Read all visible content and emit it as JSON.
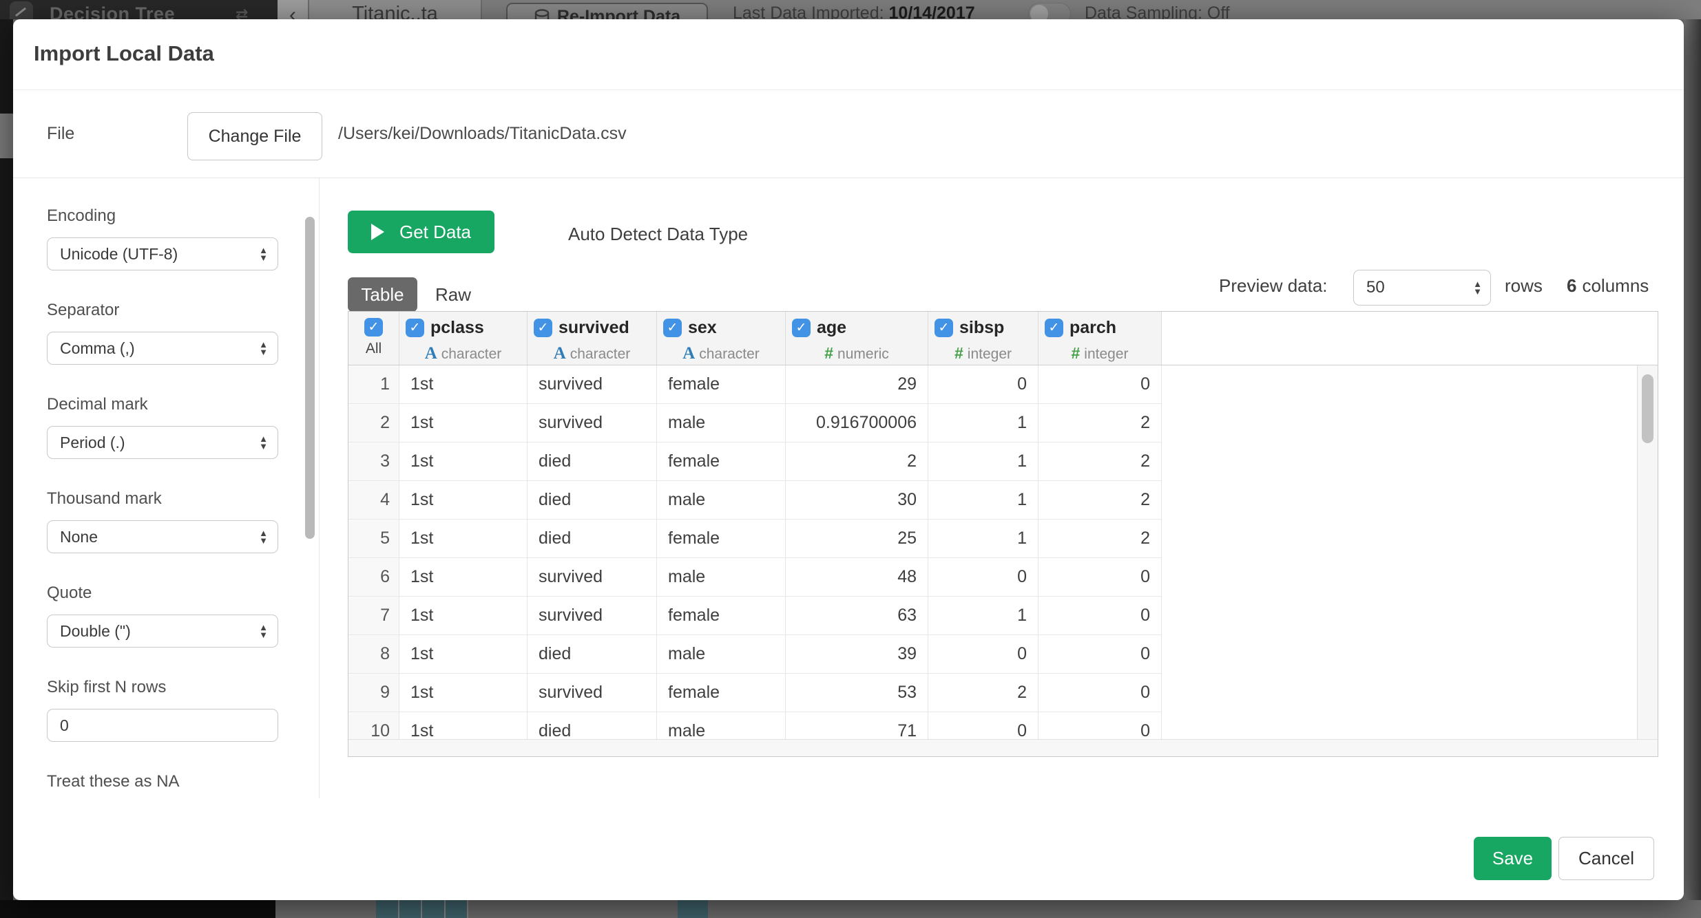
{
  "topbar": {
    "app_title": "Decision Tree",
    "tab_label": "Titanic..ta",
    "reimport_button": "Re-Import Data",
    "last_import_label": "Last Data Imported:",
    "last_import_date": "10/14/2017",
    "data_sampling_label": "Data Sampling: Off"
  },
  "modal": {
    "title": "Import Local Data",
    "file_section": {
      "label": "File",
      "change_button": "Change File",
      "path": "/Users/kei/Downloads/TitanicData.csv"
    },
    "sidebar_fields": [
      {
        "label": "Encoding",
        "control": "select",
        "value": "Unicode (UTF-8)"
      },
      {
        "label": "Separator",
        "control": "select",
        "value": "Comma (,)"
      },
      {
        "label": "Decimal mark",
        "control": "select",
        "value": "Period (.)"
      },
      {
        "label": "Thousand mark",
        "control": "select",
        "value": "None"
      },
      {
        "label": "Quote",
        "control": "select",
        "value": "Double (\")"
      },
      {
        "label": "Skip first N rows",
        "control": "input",
        "value": "0"
      },
      {
        "label": "Treat these as NA",
        "control": "none",
        "value": ""
      }
    ],
    "toolbar": {
      "get_data_button": "Get Data",
      "auto_detect_label": "Auto Detect Data Type",
      "auto_detect_checked": true
    },
    "view_tabs": [
      {
        "label": "Table",
        "active": true
      },
      {
        "label": "Raw",
        "active": false
      }
    ],
    "preview_bar": {
      "label": "Preview data:",
      "selected_value": "50",
      "rows_label": "rows",
      "column_count": "6",
      "columns_label": "columns"
    },
    "data_table": {
      "all_label": "All",
      "columns": [
        {
          "name": "pclass",
          "kind": "character"
        },
        {
          "name": "survived",
          "kind": "character"
        },
        {
          "name": "sex",
          "kind": "character"
        },
        {
          "name": "age",
          "kind": "numeric"
        },
        {
          "name": "sibsp",
          "kind": "integer"
        },
        {
          "name": "parch",
          "kind": "integer"
        }
      ],
      "rows": [
        [
          "1",
          "1st",
          "survived",
          "female",
          "29",
          "0",
          "0"
        ],
        [
          "2",
          "1st",
          "survived",
          "male",
          "0.916700006",
          "1",
          "2"
        ],
        [
          "3",
          "1st",
          "died",
          "female",
          "2",
          "1",
          "2"
        ],
        [
          "4",
          "1st",
          "died",
          "male",
          "30",
          "1",
          "2"
        ],
        [
          "5",
          "1st",
          "died",
          "female",
          "25",
          "1",
          "2"
        ],
        [
          "6",
          "1st",
          "survived",
          "male",
          "48",
          "0",
          "0"
        ],
        [
          "7",
          "1st",
          "survived",
          "female",
          "63",
          "1",
          "0"
        ],
        [
          "8",
          "1st",
          "died",
          "male",
          "39",
          "0",
          "0"
        ],
        [
          "9",
          "1st",
          "survived",
          "female",
          "53",
          "2",
          "0"
        ],
        [
          "10",
          "1st",
          "died",
          "male",
          "71",
          "0",
          "0"
        ]
      ]
    },
    "footer": {
      "save_button": "Save",
      "cancel_button": "Cancel"
    }
  },
  "colors": {
    "accent_green": "#18a663",
    "checkbox_blue": "#4293e6",
    "character_icon_blue": "#2e7cb8",
    "numeric_icon_green": "#43a047",
    "active_tab_gray": "#696969",
    "background_teal": "#41656e"
  }
}
